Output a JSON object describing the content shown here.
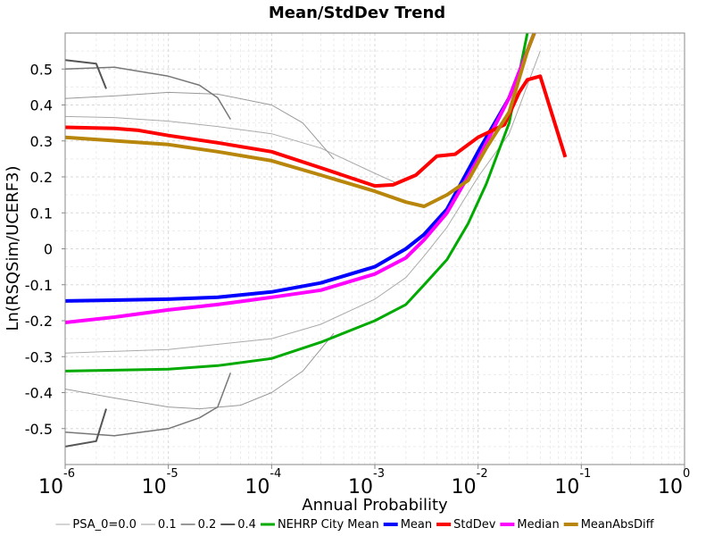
{
  "chart_data": {
    "type": "line",
    "title": "Mean/StdDev Trend",
    "xlabel": "Annual Probability",
    "ylabel": "Ln(RSQSim/UCERF3)",
    "xscale": "log",
    "xlim": [
      1e-06,
      1
    ],
    "ylim": [
      -0.6,
      0.6
    ],
    "grid": true,
    "legend_position": "bottom",
    "y_ticks": [
      "0.5",
      "0.4",
      "0.3",
      "0.2",
      "0.1",
      "0",
      "-0.1",
      "-0.2",
      "-0.3",
      "-0.4",
      "-0.5"
    ],
    "x_ticks": [
      {
        "base": "10",
        "exp": "-6"
      },
      {
        "base": "10",
        "exp": "-5"
      },
      {
        "base": "10",
        "exp": "-4"
      },
      {
        "base": "10",
        "exp": "-3"
      },
      {
        "base": "10",
        "exp": "-2"
      },
      {
        "base": "10",
        "exp": "-1"
      },
      {
        "base": "10",
        "exp": "0"
      }
    ],
    "legend": [
      {
        "label": "PSA_0=0.0",
        "color": "#aaaaaa",
        "width": 1
      },
      {
        "label": "0.1",
        "color": "#999999",
        "width": 1
      },
      {
        "label": "0.2",
        "color": "#777777",
        "width": 1.5
      },
      {
        "label": "0.4",
        "color": "#555555",
        "width": 2
      },
      {
        "label": "NEHRP City Mean",
        "color": "#00aa00",
        "width": 3
      },
      {
        "label": "Mean",
        "color": "#0000ff",
        "width": 4
      },
      {
        "label": "StdDev",
        "color": "#ff0000",
        "width": 4
      },
      {
        "label": "Median",
        "color": "#ff00ff",
        "width": 4
      },
      {
        "label": "MeanAbsDiff",
        "color": "#b8860b",
        "width": 4
      }
    ],
    "series": [
      {
        "group": "PSA_0=0.0",
        "color": "#aaaaaa",
        "width": 1,
        "points": [
          [
            1e-06,
            0.368
          ],
          [
            3e-06,
            0.365
          ],
          [
            1e-05,
            0.355
          ],
          [
            3e-05,
            0.34
          ],
          [
            0.0001,
            0.32
          ],
          [
            0.0003,
            0.28
          ],
          [
            0.001,
            0.21
          ],
          [
            0.0017,
            0.18
          ]
        ]
      },
      {
        "group": "PSA_0=0.0",
        "color": "#aaaaaa",
        "width": 1,
        "points": [
          [
            1e-06,
            -0.29
          ],
          [
            1e-05,
            -0.28
          ],
          [
            0.0001,
            -0.25
          ],
          [
            0.0003,
            -0.21
          ],
          [
            0.001,
            -0.14
          ],
          [
            0.002,
            -0.08
          ],
          [
            0.003,
            -0.02
          ],
          [
            0.005,
            0.06
          ],
          [
            0.01,
            0.2
          ],
          [
            0.02,
            0.32
          ],
          [
            0.04,
            0.55
          ]
        ]
      },
      {
        "group": "0.1",
        "color": "#999999",
        "width": 1,
        "points": [
          [
            1e-06,
            0.418
          ],
          [
            3e-06,
            0.425
          ],
          [
            1e-05,
            0.435
          ],
          [
            3e-05,
            0.43
          ],
          [
            0.0001,
            0.4
          ],
          [
            0.0002,
            0.35
          ],
          [
            0.0004,
            0.25
          ]
        ]
      },
      {
        "group": "0.1",
        "color": "#999999",
        "width": 1,
        "points": [
          [
            1e-06,
            -0.39
          ],
          [
            3e-06,
            -0.415
          ],
          [
            1e-05,
            -0.44
          ],
          [
            2e-05,
            -0.445
          ],
          [
            5e-05,
            -0.435
          ],
          [
            0.0001,
            -0.4
          ],
          [
            0.0002,
            -0.34
          ],
          [
            0.0004,
            -0.235
          ]
        ]
      },
      {
        "group": "0.2",
        "color": "#777777",
        "width": 1.5,
        "points": [
          [
            1e-06,
            0.5
          ],
          [
            3e-06,
            0.505
          ],
          [
            1e-05,
            0.48
          ],
          [
            2e-05,
            0.455
          ],
          [
            3e-05,
            0.42
          ],
          [
            4e-05,
            0.36
          ]
        ]
      },
      {
        "group": "0.2",
        "color": "#777777",
        "width": 1.5,
        "points": [
          [
            1e-06,
            -0.51
          ],
          [
            3e-06,
            -0.52
          ],
          [
            1e-05,
            -0.5
          ],
          [
            2e-05,
            -0.47
          ],
          [
            3e-05,
            -0.44
          ],
          [
            4e-05,
            -0.345
          ]
        ]
      },
      {
        "group": "0.4",
        "color": "#555555",
        "width": 2,
        "points": [
          [
            1e-06,
            0.525
          ],
          [
            2e-06,
            0.515
          ],
          [
            2.5e-06,
            0.445
          ]
        ]
      },
      {
        "group": "0.4",
        "color": "#555555",
        "width": 2,
        "points": [
          [
            1e-06,
            -0.55
          ],
          [
            2e-06,
            -0.535
          ],
          [
            2.5e-06,
            -0.445
          ]
        ]
      },
      {
        "name": "NEHRP City Mean",
        "color": "#00aa00",
        "width": 3,
        "points": [
          [
            1e-06,
            -0.34
          ],
          [
            1e-05,
            -0.335
          ],
          [
            3e-05,
            -0.325
          ],
          [
            0.0001,
            -0.305
          ],
          [
            0.0003,
            -0.26
          ],
          [
            0.001,
            -0.2
          ],
          [
            0.002,
            -0.155
          ],
          [
            0.003,
            -0.1
          ],
          [
            0.005,
            -0.03
          ],
          [
            0.008,
            0.07
          ],
          [
            0.012,
            0.18
          ],
          [
            0.02,
            0.35
          ],
          [
            0.03,
            0.6
          ]
        ]
      },
      {
        "name": "Mean",
        "color": "#0000ff",
        "width": 4,
        "points": [
          [
            1e-06,
            -0.145
          ],
          [
            1e-05,
            -0.14
          ],
          [
            3e-05,
            -0.135
          ],
          [
            0.0001,
            -0.12
          ],
          [
            0.0003,
            -0.095
          ],
          [
            0.001,
            -0.05
          ],
          [
            0.002,
            0.0
          ],
          [
            0.003,
            0.04
          ],
          [
            0.005,
            0.11
          ],
          [
            0.01,
            0.27
          ],
          [
            0.02,
            0.42
          ],
          [
            0.035,
            0.6
          ]
        ]
      },
      {
        "name": "Median",
        "color": "#ff00ff",
        "width": 4,
        "points": [
          [
            1e-06,
            -0.205
          ],
          [
            3e-06,
            -0.19
          ],
          [
            1e-05,
            -0.17
          ],
          [
            3e-05,
            -0.155
          ],
          [
            0.0001,
            -0.135
          ],
          [
            0.0003,
            -0.115
          ],
          [
            0.001,
            -0.07
          ],
          [
            0.002,
            -0.025
          ],
          [
            0.003,
            0.025
          ],
          [
            0.005,
            0.1
          ],
          [
            0.01,
            0.25
          ],
          [
            0.02,
            0.42
          ],
          [
            0.035,
            0.6
          ]
        ]
      },
      {
        "name": "StdDev",
        "color": "#ff0000",
        "width": 4,
        "points": [
          [
            1e-06,
            0.338
          ],
          [
            3e-06,
            0.335
          ],
          [
            5e-06,
            0.33
          ],
          [
            1e-05,
            0.315
          ],
          [
            3e-05,
            0.295
          ],
          [
            0.0001,
            0.27
          ],
          [
            0.0003,
            0.225
          ],
          [
            0.001,
            0.175
          ],
          [
            0.0015,
            0.178
          ],
          [
            0.0025,
            0.205
          ],
          [
            0.004,
            0.258
          ],
          [
            0.006,
            0.263
          ],
          [
            0.01,
            0.31
          ],
          [
            0.018,
            0.345
          ],
          [
            0.025,
            0.435
          ],
          [
            0.03,
            0.47
          ],
          [
            0.04,
            0.48
          ],
          [
            0.07,
            0.255
          ]
        ]
      },
      {
        "name": "MeanAbsDiff",
        "color": "#b8860b",
        "width": 4,
        "points": [
          [
            1e-06,
            0.31
          ],
          [
            1e-05,
            0.29
          ],
          [
            3e-05,
            0.27
          ],
          [
            0.0001,
            0.245
          ],
          [
            0.0003,
            0.205
          ],
          [
            0.001,
            0.16
          ],
          [
            0.002,
            0.13
          ],
          [
            0.003,
            0.118
          ],
          [
            0.005,
            0.15
          ],
          [
            0.008,
            0.19
          ],
          [
            0.012,
            0.28
          ],
          [
            0.02,
            0.38
          ],
          [
            0.03,
            0.55
          ],
          [
            0.035,
            0.6
          ]
        ]
      }
    ]
  }
}
